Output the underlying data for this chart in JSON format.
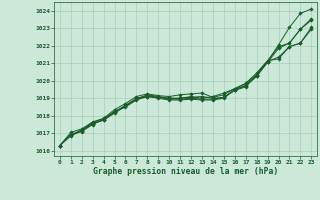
{
  "background_color": "#cce8d8",
  "grid_color": "#aacfbc",
  "line_color": "#1a5c2a",
  "marker_color": "#1a5c2a",
  "xlabel": "Graphe pression niveau de la mer (hPa)",
  "xlim": [
    -0.5,
    23.5
  ],
  "ylim": [
    1015.7,
    1024.5
  ],
  "yticks": [
    1016,
    1017,
    1018,
    1019,
    1020,
    1021,
    1022,
    1023,
    1024
  ],
  "xticks": [
    0,
    1,
    2,
    3,
    4,
    5,
    6,
    7,
    8,
    9,
    10,
    11,
    12,
    13,
    14,
    15,
    16,
    17,
    18,
    19,
    20,
    21,
    22,
    23
  ],
  "series": [
    [
      1016.3,
      1016.9,
      1017.1,
      1017.5,
      1017.8,
      1018.2,
      1018.6,
      1019.0,
      1019.15,
      1019.05,
      1019.0,
      1019.0,
      1019.05,
      1019.1,
      1019.0,
      1019.05,
      1019.45,
      1019.65,
      1020.35,
      1021.1,
      1022.05,
      1023.05,
      1023.85,
      1024.1
    ],
    [
      1016.3,
      1016.9,
      1017.15,
      1017.55,
      1017.75,
      1018.15,
      1018.55,
      1018.95,
      1019.1,
      1019.05,
      1018.95,
      1018.95,
      1019.0,
      1018.95,
      1018.95,
      1019.05,
      1019.5,
      1019.7,
      1020.25,
      1021.05,
      1021.85,
      1022.15,
      1022.95,
      1023.45
    ],
    [
      1016.3,
      1016.9,
      1017.2,
      1017.6,
      1017.85,
      1018.25,
      1018.55,
      1018.95,
      1019.2,
      1019.1,
      1019.0,
      1019.0,
      1019.1,
      1019.0,
      1019.1,
      1019.3,
      1019.55,
      1019.85,
      1020.45,
      1021.15,
      1021.25,
      1021.95,
      1022.15,
      1023.05
    ],
    [
      1016.3,
      1016.85,
      1017.15,
      1017.55,
      1017.75,
      1018.2,
      1018.5,
      1018.9,
      1019.1,
      1019.0,
      1018.9,
      1018.9,
      1018.95,
      1018.9,
      1018.9,
      1019.0,
      1019.5,
      1019.75,
      1020.3,
      1021.1,
      1021.35,
      1021.95,
      1022.15,
      1022.95
    ],
    [
      1016.3,
      1017.05,
      1017.25,
      1017.65,
      1017.85,
      1018.35,
      1018.7,
      1019.1,
      1019.25,
      1019.15,
      1019.1,
      1019.2,
      1019.25,
      1019.3,
      1019.05,
      1019.2,
      1019.55,
      1019.85,
      1020.35,
      1021.15,
      1021.95,
      1022.15,
      1022.95,
      1023.55
    ]
  ]
}
